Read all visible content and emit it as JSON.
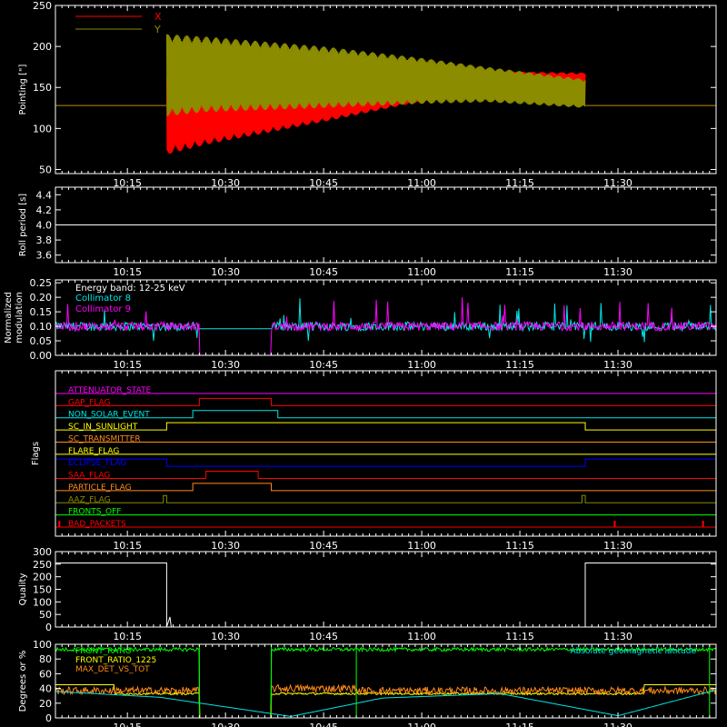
{
  "colors": {
    "background": "#000000",
    "axes": "#ffffff",
    "red": "#ff0000",
    "olive": "#8c8c00",
    "cyan": "#00e5e5",
    "magenta": "#ff00ff",
    "orange": "#ff8c1a",
    "yellow": "#ffff00",
    "green": "#00ff00",
    "blue": "#0000ff"
  },
  "chart_data": [
    {
      "type": "line",
      "ylabel": "Pointing [\"]",
      "xlim": [
        "10:04",
        "11:45"
      ],
      "ylim": [
        45,
        250
      ],
      "yticks": [
        50,
        100,
        150,
        200,
        250
      ],
      "xticks": [
        "10:15",
        "10:30",
        "10:45",
        "11:00",
        "11:15",
        "11:30"
      ],
      "series": [
        {
          "name": "X",
          "color": "red",
          "baseline": 128,
          "start": "10:21",
          "end": "11:25",
          "envelope_x": [
            "10:21",
            "10:27",
            "10:45",
            "11:00",
            "11:10",
            "11:25"
          ],
          "envelope_low": [
            68,
            80,
            108,
            133,
            142,
            140
          ],
          "envelope_high": [
            170,
            158,
            160,
            166,
            170,
            168
          ]
        },
        {
          "name": "Y",
          "color": "olive",
          "baseline": 128,
          "start": "10:21",
          "end": "11:25",
          "envelope_x": [
            "10:21",
            "10:27",
            "10:45",
            "11:00",
            "11:10",
            "11:25"
          ],
          "envelope_low": [
            115,
            120,
            125,
            130,
            132,
            125
          ],
          "envelope_high": [
            215,
            212,
            200,
            186,
            175,
            160
          ]
        }
      ]
    },
    {
      "type": "line",
      "ylabel": "Roll period [s]",
      "xlim": [
        "10:04",
        "11:45"
      ],
      "ylim": [
        3.5,
        4.5
      ],
      "yticks": [
        3.6,
        3.8,
        4.0,
        4.2,
        4.4
      ],
      "xticks": [
        "10:15",
        "10:30",
        "10:45",
        "11:00",
        "11:15",
        "11:30"
      ],
      "series": [
        {
          "name": "",
          "color": "axes",
          "x": [
            "10:04",
            "11:45"
          ],
          "y": [
            4.0,
            4.0
          ]
        }
      ]
    },
    {
      "type": "line",
      "ylabel": "Normalized modulation",
      "xlim": [
        "10:04",
        "11:45"
      ],
      "ylim": [
        0,
        0.26
      ],
      "yticks": [
        0.0,
        0.05,
        0.1,
        0.15,
        0.2,
        0.25
      ],
      "xticks": [
        "10:15",
        "10:30",
        "10:45",
        "11:00",
        "11:15",
        "11:30"
      ],
      "annotation": "Energy band: 12-25 keV",
      "series": [
        {
          "name": "Collimator 8",
          "color": "cyan",
          "level": 0.1,
          "gap_start": "10:26",
          "gap_end": "10:37"
        },
        {
          "name": "Collimator 9",
          "color": "magenta",
          "level": 0.1,
          "gap_start": "10:26",
          "gap_end": "10:37",
          "gap_value": 0.0
        }
      ]
    },
    {
      "type": "line",
      "ylabel": "Flags",
      "xlim": [
        "10:04",
        "11:45"
      ],
      "xticks": [
        "10:15",
        "10:30",
        "10:45",
        "11:00",
        "11:15",
        "11:30"
      ],
      "flags": [
        {
          "name": "ATTENUATOR_STATE",
          "color": "magenta",
          "segments": []
        },
        {
          "name": "GAP_FLAG",
          "color": "red",
          "segments": [
            [
              "10:26",
              "10:37"
            ]
          ]
        },
        {
          "name": "NON_SOLAR_EVENT",
          "color": "cyan",
          "segments": [
            [
              "10:25",
              "10:38"
            ]
          ]
        },
        {
          "name": "SC_IN_SUNLIGHT",
          "color": "yellow",
          "segments": [
            [
              "10:21",
              "11:25"
            ]
          ]
        },
        {
          "name": "SC_TRANSMITTER",
          "color": "orange",
          "segments": []
        },
        {
          "name": "FLARE_FLAG",
          "color": "yellow",
          "segments": []
        },
        {
          "name": "ECLIPSE_FLAG",
          "color": "blue",
          "segments": [
            [
              "10:04",
              "10:21"
            ],
            [
              "11:25",
              "11:45"
            ]
          ]
        },
        {
          "name": "SAA_FLAG",
          "color": "red",
          "segments": [
            [
              "10:27",
              "10:35"
            ]
          ]
        },
        {
          "name": "PARTICLE_FLAG",
          "color": "orange",
          "segments": [
            [
              "10:25",
              "10:37"
            ]
          ]
        },
        {
          "name": "AAZ_FLAG",
          "color": "olive",
          "segments": [
            [
              "10:20.5",
              "10:21"
            ],
            [
              "11:24.5",
              "11:25"
            ]
          ]
        },
        {
          "name": "FRONTS_OFF",
          "color": "green",
          "segments": []
        },
        {
          "name": "BAD_PACKETS",
          "color": "red",
          "spikes": [
            "10:04.6",
            "11:29.5",
            "11:43"
          ]
        }
      ]
    },
    {
      "type": "line",
      "ylabel": "Quality",
      "xlim": [
        "10:04",
        "11:45"
      ],
      "ylim": [
        0,
        300
      ],
      "yticks": [
        0,
        50,
        100,
        150,
        200,
        250,
        300
      ],
      "xticks": [
        "10:15",
        "10:30",
        "10:45",
        "11:00",
        "11:15",
        "11:30"
      ],
      "series": [
        {
          "name": "",
          "color": "axes",
          "x": [
            "10:04",
            "10:21",
            "10:21",
            "10:21.5",
            "10:21.7",
            "11:25",
            "11:25",
            "11:45"
          ],
          "y": [
            255,
            255,
            0,
            40,
            0,
            0,
            255,
            255
          ]
        }
      ]
    },
    {
      "type": "line",
      "ylabel": "Degrees or %",
      "xlim": [
        "10:04",
        "11:45"
      ],
      "ylim": [
        0,
        100
      ],
      "yticks": [
        0,
        20,
        40,
        60,
        80,
        100
      ],
      "xticks": [
        "10:15",
        "10:30",
        "10:45",
        "11:00",
        "11:15",
        "11:30"
      ],
      "series": [
        {
          "name": "FRONT_RATIO",
          "color": "green",
          "level": 93
        },
        {
          "name": "FRONT_RATIO_1225",
          "color": "yellow",
          "level": 33
        },
        {
          "name": "MAX_DET_VS_TOT",
          "color": "orange",
          "level": 37
        },
        {
          "name": "Absolute geomagnetic latitude",
          "color": "cyan",
          "x": [
            "10:04",
            "10:20",
            "10:40",
            "10:54",
            "11:12",
            "11:30",
            "11:45"
          ],
          "y": [
            36,
            28,
            2,
            27,
            33,
            3,
            38
          ]
        }
      ]
    }
  ]
}
